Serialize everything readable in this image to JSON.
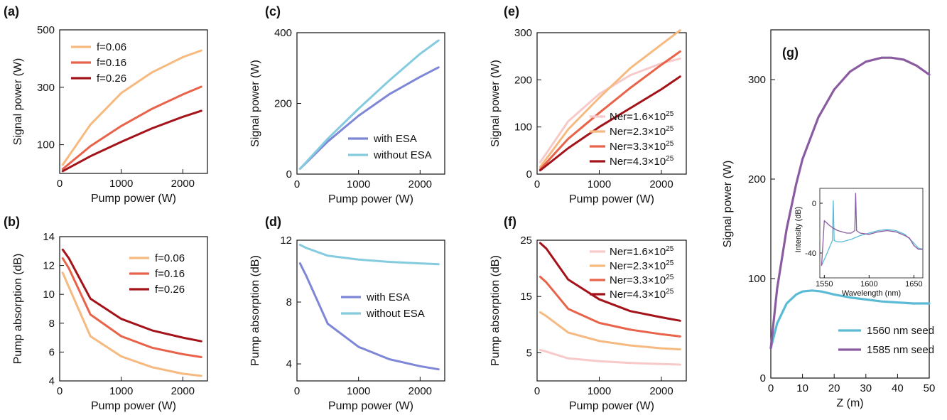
{
  "colors": {
    "light_orange": "#F6B97F",
    "orange": "#E8634A",
    "dark_red": "#A31319",
    "pink": "#F7C9C9",
    "blue_purple": "#7E86D6",
    "light_blue": "#84CBE0",
    "teal": "#5BBBD6",
    "purple": "#8A5BA0"
  },
  "chart_data": [
    {
      "id": "a",
      "panel_label": "(a)",
      "type": "line",
      "xlabel": "Pump power (W)",
      "ylabel": "Signal power (W)",
      "xlim": [
        0,
        2400
      ],
      "ylim": [
        0,
        500
      ],
      "xticks": [
        0,
        1000,
        2000
      ],
      "xtick_labels": [
        "0",
        "1000",
        "2000"
      ],
      "yticks": [
        100,
        300,
        500
      ],
      "ytick_labels": [
        "100",
        "300",
        "500"
      ],
      "legend_position": "top-left",
      "series": [
        {
          "name": "f=0.06",
          "color": "#F6B97F",
          "x": [
            50,
            500,
            1000,
            1500,
            2000,
            2300
          ],
          "y": [
            30,
            170,
            280,
            352,
            405,
            428
          ]
        },
        {
          "name": "f=0.16",
          "color": "#E8634A",
          "x": [
            50,
            500,
            1000,
            1500,
            2000,
            2300
          ],
          "y": [
            15,
            95,
            165,
            225,
            275,
            302
          ]
        },
        {
          "name": "f=0.26",
          "color": "#A31319",
          "x": [
            50,
            500,
            1000,
            1500,
            2000,
            2300
          ],
          "y": [
            8,
            60,
            110,
            157,
            197,
            218
          ]
        }
      ]
    },
    {
      "id": "b",
      "panel_label": "(b)",
      "type": "line",
      "xlabel": "Pump power (W)",
      "ylabel": "Pump absorption  (dB)",
      "xlim": [
        0,
        2400
      ],
      "ylim": [
        4,
        14
      ],
      "xticks": [
        0,
        1000,
        2000
      ],
      "xtick_labels": [
        "0",
        "1000",
        "2000"
      ],
      "yticks": [
        4,
        6,
        8,
        10,
        12,
        14
      ],
      "ytick_labels": [
        "4",
        "6",
        "8",
        "10",
        "12",
        "14"
      ],
      "legend_position": "top-right",
      "series": [
        {
          "name": "f=0.06",
          "color": "#F6B97F",
          "x": [
            50,
            150,
            500,
            1000,
            1500,
            2000,
            2300
          ],
          "y": [
            11.5,
            10.5,
            7.1,
            5.7,
            4.95,
            4.5,
            4.35
          ]
        },
        {
          "name": "f=0.16",
          "color": "#E8634A",
          "x": [
            50,
            150,
            500,
            1000,
            1500,
            2000,
            2300
          ],
          "y": [
            12.5,
            11.8,
            8.6,
            7.1,
            6.3,
            5.85,
            5.65
          ]
        },
        {
          "name": "f=0.26",
          "color": "#A31319",
          "x": [
            50,
            150,
            500,
            1000,
            1500,
            2000,
            2300
          ],
          "y": [
            13.1,
            12.5,
            9.7,
            8.3,
            7.5,
            7.0,
            6.75
          ]
        }
      ]
    },
    {
      "id": "c",
      "panel_label": "(c)",
      "type": "line",
      "xlabel": "Pump power (W)",
      "ylabel": "Signal power (W)",
      "xlim": [
        0,
        2400
      ],
      "ylim": [
        0,
        400
      ],
      "xticks": [
        0,
        1000,
        2000
      ],
      "xtick_labels": [
        "0",
        "1000",
        "2000"
      ],
      "yticks": [
        0,
        200,
        400
      ],
      "ytick_labels": [
        "0",
        "200",
        "400"
      ],
      "legend_position": "bottom-right",
      "series": [
        {
          "name": "with ESA",
          "color": "#7E86D6",
          "x": [
            50,
            500,
            1000,
            1500,
            2000,
            2300
          ],
          "y": [
            15,
            92,
            165,
            226,
            275,
            302
          ]
        },
        {
          "name": "without ESA",
          "color": "#84CBE0",
          "x": [
            50,
            500,
            1000,
            1500,
            2000,
            2300
          ],
          "y": [
            15,
            100,
            185,
            265,
            340,
            378
          ]
        }
      ]
    },
    {
      "id": "d",
      "panel_label": "(d)",
      "type": "line",
      "xlabel": "Pump power (W)",
      "ylabel": "Pump absorption  (dB)",
      "xlim": [
        0,
        2400
      ],
      "ylim": [
        2.9,
        12
      ],
      "xticks": [
        0,
        1000,
        2000
      ],
      "xtick_labels": [
        "0",
        "1000",
        "2000"
      ],
      "yticks": [
        4,
        8,
        12
      ],
      "ytick_labels": [
        "4",
        "8",
        "12"
      ],
      "legend_position": "center-right",
      "series": [
        {
          "name": "with ESA",
          "color": "#7E86D6",
          "x": [
            50,
            150,
            500,
            1000,
            1500,
            2000,
            2300
          ],
          "y": [
            10.5,
            9.7,
            6.6,
            5.1,
            4.3,
            3.85,
            3.65
          ]
        },
        {
          "name": "without ESA",
          "color": "#84CBE0",
          "x": [
            50,
            150,
            500,
            1000,
            1500,
            2000,
            2300
          ],
          "y": [
            11.7,
            11.5,
            11.0,
            10.75,
            10.6,
            10.5,
            10.45
          ]
        }
      ]
    },
    {
      "id": "e",
      "panel_label": "(e)",
      "type": "line",
      "xlabel": "Pump power (W)",
      "ylabel": "Signal power (W)",
      "xlim": [
        0,
        2400
      ],
      "ylim": [
        0,
        300
      ],
      "xticks": [
        0,
        1000,
        2000
      ],
      "xtick_labels": [
        "0",
        "1000",
        "2000"
      ],
      "yticks": [
        0,
        100,
        200,
        300
      ],
      "ytick_labels": [
        "0",
        "100",
        "200",
        "300"
      ],
      "legend_position": "bottom-right",
      "series": [
        {
          "name": "Ner=1.6×10",
          "name_sup": "25",
          "color": "#F7C9C9",
          "x": [
            50,
            500,
            1000,
            1500,
            2000,
            2300
          ],
          "y": [
            25,
            112,
            170,
            210,
            235,
            245
          ]
        },
        {
          "name": "Ner=2.3×10",
          "name_sup": "25",
          "color": "#F6B97F",
          "x": [
            50,
            500,
            1000,
            1500,
            2000,
            2300
          ],
          "y": [
            15,
            95,
            162,
            225,
            275,
            305
          ]
        },
        {
          "name": "Ner=3.3×10",
          "name_sup": "25",
          "color": "#E8634A",
          "x": [
            50,
            500,
            1000,
            1500,
            2000,
            2300
          ],
          "y": [
            10,
            75,
            130,
            183,
            232,
            260
          ]
        },
        {
          "name": "Ner=4.3×10",
          "name_sup": "25",
          "color": "#A31319",
          "x": [
            50,
            500,
            1000,
            1500,
            2000,
            2300
          ],
          "y": [
            8,
            55,
            100,
            140,
            180,
            207
          ]
        }
      ]
    },
    {
      "id": "f",
      "panel_label": "(f)",
      "type": "line",
      "xlabel": "Pump power (W)",
      "ylabel": "Pump absorption  (dB)",
      "xlim": [
        0,
        2400
      ],
      "ylim": [
        0,
        25
      ],
      "xticks": [
        0,
        1000,
        2000
      ],
      "xtick_labels": [
        "0",
        "1000",
        "2000"
      ],
      "yticks": [
        5,
        15,
        25
      ],
      "ytick_labels": [
        "5",
        "15",
        "25"
      ],
      "legend_position": "top-right",
      "series": [
        {
          "name": "Ner=1.6×10",
          "name_sup": "25",
          "color": "#F7C9C9",
          "x": [
            50,
            150,
            500,
            1000,
            1500,
            2000,
            2300
          ],
          "y": [
            5.5,
            5.2,
            4.0,
            3.5,
            3.2,
            3.0,
            2.9
          ]
        },
        {
          "name": "Ner=2.3×10",
          "name_sup": "25",
          "color": "#F6B97F",
          "x": [
            50,
            150,
            500,
            1000,
            1500,
            2000,
            2300
          ],
          "y": [
            12.2,
            11.5,
            8.6,
            7.1,
            6.3,
            5.8,
            5.6
          ]
        },
        {
          "name": "Ner=3.3×10",
          "name_sup": "25",
          "color": "#E8634A",
          "x": [
            50,
            150,
            500,
            1000,
            1500,
            2000,
            2300
          ],
          "y": [
            18.5,
            17.5,
            12.8,
            10.3,
            9.1,
            8.3,
            7.9
          ]
        },
        {
          "name": "Ner=4.3×10",
          "name_sup": "25",
          "color": "#A31319",
          "x": [
            50,
            150,
            500,
            1000,
            1500,
            2000,
            2300
          ],
          "y": [
            24.5,
            23.5,
            18.0,
            14.5,
            12.4,
            11.3,
            10.7
          ]
        }
      ]
    },
    {
      "id": "g",
      "panel_label": "(g)",
      "type": "line",
      "xlabel": "Z (m)",
      "ylabel": "Signal power (W)",
      "xlim": [
        0,
        50
      ],
      "ylim": [
        0,
        350
      ],
      "xticks": [
        0,
        10,
        20,
        30,
        40,
        50
      ],
      "xtick_labels": [
        "0",
        "10",
        "20",
        "30",
        "40",
        "50"
      ],
      "yticks": [
        0,
        100,
        200,
        300
      ],
      "ytick_labels": [
        "0",
        "100",
        "200",
        "300"
      ],
      "legend_position": "bottom-right",
      "series": [
        {
          "name": "1560 nm seed",
          "color": "#5BBBD6",
          "x": [
            0,
            2,
            5,
            8,
            10,
            13,
            16,
            20,
            25,
            30,
            35,
            40,
            45,
            50
          ],
          "y": [
            30,
            55,
            75,
            84,
            87,
            88,
            87,
            84,
            81,
            79,
            77,
            76,
            75,
            75
          ]
        },
        {
          "name": "1585 nm seed",
          "color": "#8A5BA0",
          "x": [
            0,
            2,
            5,
            8,
            10,
            15,
            20,
            25,
            30,
            35,
            38,
            42,
            46,
            50
          ],
          "y": [
            30,
            90,
            150,
            195,
            220,
            262,
            290,
            308,
            318,
            322,
            322,
            320,
            314,
            305
          ]
        }
      ]
    },
    {
      "id": "g_inset",
      "type": "line",
      "xlabel": "Wavelength (nm)",
      "ylabel": "Intensity (dB)",
      "xlim": [
        1545,
        1660
      ],
      "ylim": [
        -60,
        12
      ],
      "xticks": [
        1550,
        1600,
        1650
      ],
      "xtick_labels": [
        "1550",
        "1600",
        "1650"
      ],
      "yticks": [
        0,
        -40
      ],
      "ytick_labels": [
        "0",
        "-40"
      ],
      "series": [
        {
          "color": "#5BBBD6",
          "x": [
            1547,
            1552,
            1556,
            1559,
            1560,
            1561,
            1565,
            1570,
            1575,
            1580,
            1590,
            1600,
            1610,
            1620,
            1630,
            1640,
            1650,
            1655,
            1660
          ],
          "y": [
            -50,
            -42,
            -35,
            -30,
            2,
            -30,
            -31,
            -31,
            -30,
            -29,
            -26,
            -24,
            -22,
            -21,
            -22,
            -25,
            -32,
            -36,
            -37
          ]
        },
        {
          "color": "#8A5BA0",
          "x": [
            1547,
            1550,
            1553,
            1556,
            1560,
            1565,
            1570,
            1575,
            1580,
            1584,
            1585,
            1586,
            1590,
            1600,
            1610,
            1620,
            1630,
            1640,
            1645,
            1650,
            1655,
            1660
          ],
          "y": [
            -50,
            -14,
            -16,
            -18,
            -20,
            -22,
            -23,
            -24,
            -24,
            -22,
            8,
            -22,
            -24,
            -25,
            -23,
            -22,
            -23,
            -26,
            -28,
            -34,
            -37,
            -37
          ]
        }
      ]
    }
  ]
}
